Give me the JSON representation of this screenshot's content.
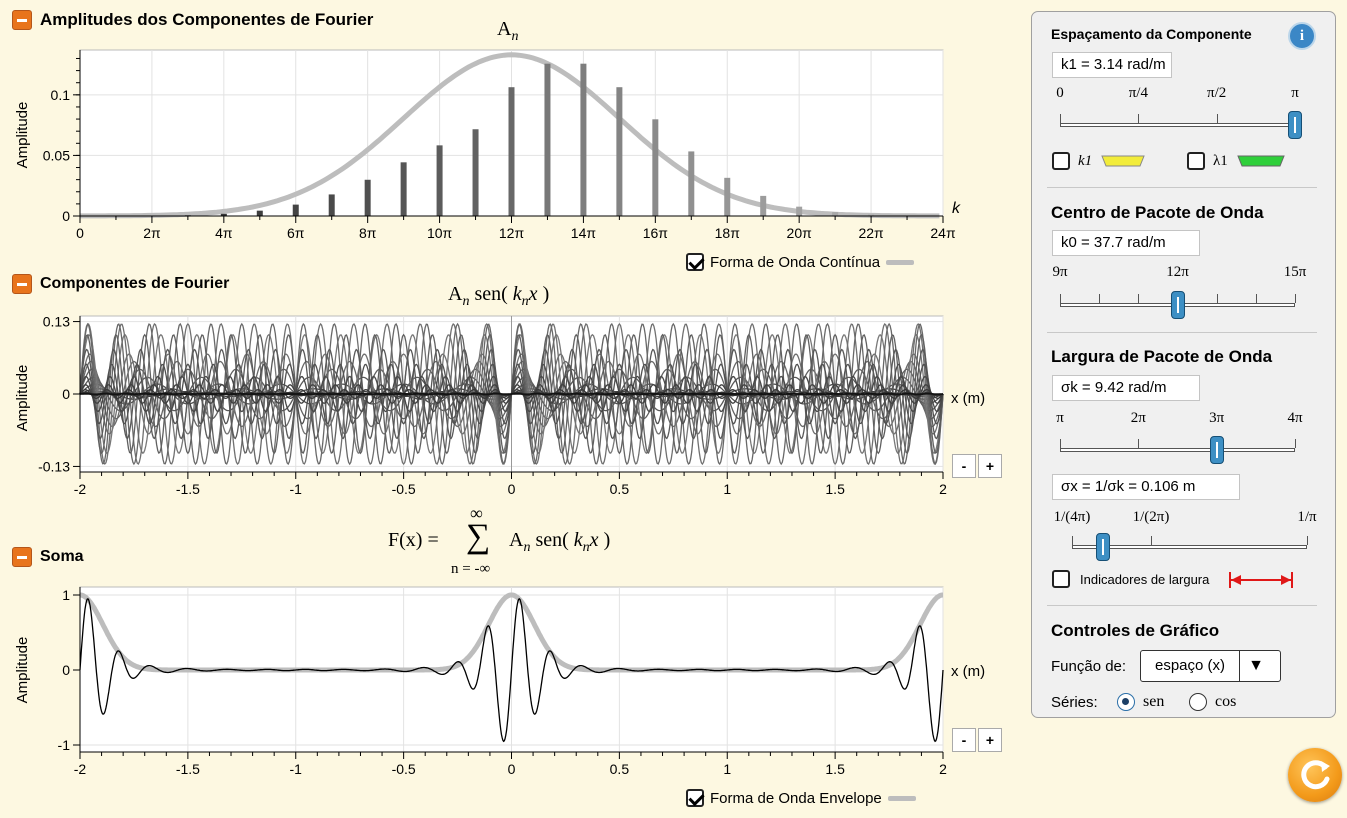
{
  "sections": {
    "amplitudes": {
      "title": "Amplitudes dos Componentes de Fourier",
      "formula_main": "A",
      "formula_sub": "n",
      "ylabel": "Amplitude",
      "xaxis_var": "k"
    },
    "components": {
      "title": "Componentes de Fourier",
      "formula_a": "A",
      "formula_sub": "n",
      "formula_rest": " sen( ",
      "formula_k": "k",
      "formula_ksub": "n",
      "formula_x": "x",
      "formula_close": " )",
      "ylabel": "Amplitude",
      "xaxis_label": "x (m)"
    },
    "sum": {
      "title": "Soma",
      "formula_lhs": "F(x) = ",
      "sum_top": "∞",
      "sum_symbol": "∑",
      "sum_bottom": "n = -∞",
      "formula_rhs": "A",
      "formula_sub": "n",
      "formula_rest": " sen( ",
      "formula_k": "k",
      "formula_ksub": "n",
      "formula_x": "x",
      "formula_close": " )",
      "ylabel": "Amplitude",
      "xaxis_label": "x (m)"
    }
  },
  "legend": {
    "continuous": "Forma de Onda Contínua",
    "envelope": "Forma de Onda Envelope"
  },
  "zoom": {
    "minus": "-",
    "plus": "+"
  },
  "panel": {
    "spacing_title": "Espaçamento da Componente",
    "info_icon": "i",
    "k1_readout": "k1 = 3.14 rad/m",
    "k1_ticks": [
      "0",
      "π/4",
      "π/2",
      "π"
    ],
    "k1_slider_fraction": 1.0,
    "chk_k1": "k1",
    "chk_lambda1": "λ1",
    "center_title": "Centro de Pacote de Onda",
    "k0_readout": "k0 = 37.7 rad/m",
    "k0_ticks": [
      "9π",
      "12π",
      "15π"
    ],
    "k0_slider_fraction": 0.5,
    "width_title": "Largura de Pacote de Onda",
    "sigmak_readout": "σk = 9.42 rad/m",
    "sigmak_ticks": [
      "π",
      "2π",
      "3π",
      "4π"
    ],
    "sigmak_slider_fraction": 0.667,
    "sigmax_readout": "σx = 1/σk = 0.106 m",
    "sigmax_ticks": [
      "1/(4π)",
      "1/(2π)",
      "1/π"
    ],
    "sigmax_slider_fraction": 0.133,
    "width_indicators": "Indicadores de largura",
    "graph_title": "Controles de Gráfico",
    "function_label": "Função de:",
    "function_value": "espaço (x)",
    "series_label": "Séries:",
    "series_sen": "sen",
    "series_cos": "cos"
  },
  "colors": {
    "accent_orange": "#e8741c",
    "slider_blue": "#3d8fc4",
    "envelope_gray": "#bdbdbd",
    "k1_yellow": "#f2ec3a",
    "lambda_green": "#2fcf3a",
    "indicator_red": "#e01818"
  },
  "chart_data": [
    {
      "type": "bar",
      "title": "A_n",
      "ylabel": "Amplitude",
      "xlabel": "k",
      "x_ticks": [
        "0",
        "2π",
        "4π",
        "6π",
        "8π",
        "10π",
        "12π",
        "14π",
        "16π",
        "18π",
        "20π",
        "22π",
        "24π"
      ],
      "y_ticks": [
        "0",
        "0.05",
        "0.1"
      ],
      "ylim": [
        0,
        0.137
      ],
      "xlim_pi": [
        0,
        24
      ],
      "k_pi": [
        1,
        2,
        3,
        4,
        5,
        6,
        7,
        8,
        9,
        10,
        11,
        12,
        13,
        14,
        15,
        16,
        17,
        18,
        19,
        20,
        21,
        22,
        23
      ],
      "values": [
        6e-05,
        0.0002,
        0.0006,
        0.0018,
        0.0044,
        0.0094,
        0.0178,
        0.0299,
        0.0443,
        0.0583,
        0.0716,
        0.1063,
        0.1257,
        0.1257,
        0.1063,
        0.0798,
        0.0533,
        0.0315,
        0.0166,
        0.0077,
        0.0032,
        0.0012,
        0.0004
      ],
      "envelope": {
        "center_pi": 12,
        "sigma_pi": 3,
        "peak": 0.133
      }
    },
    {
      "type": "line",
      "title": "A_n sen( k_n x )",
      "ylabel": "Amplitude",
      "xlabel": "x (m)",
      "x_ticks": [
        "-2",
        "-1.5",
        "-1",
        "-0.5",
        "0",
        "0.5",
        "1",
        "1.5",
        "2"
      ],
      "y_ticks": [
        "0.13",
        "0",
        "-0.13"
      ],
      "xlim": [
        -2,
        2
      ],
      "ylim": [
        -0.14,
        0.14
      ]
    },
    {
      "type": "line",
      "title": "F(x)",
      "ylabel": "Amplitude",
      "xlabel": "x (m)",
      "x_ticks": [
        "-2",
        "-1.5",
        "-1",
        "-0.5",
        "0",
        "0.5",
        "1",
        "1.5",
        "2"
      ],
      "y_ticks": [
        "1",
        "0",
        "-1"
      ],
      "xlim": [
        -2,
        2
      ],
      "ylim": [
        -1.05,
        1.05
      ]
    }
  ]
}
